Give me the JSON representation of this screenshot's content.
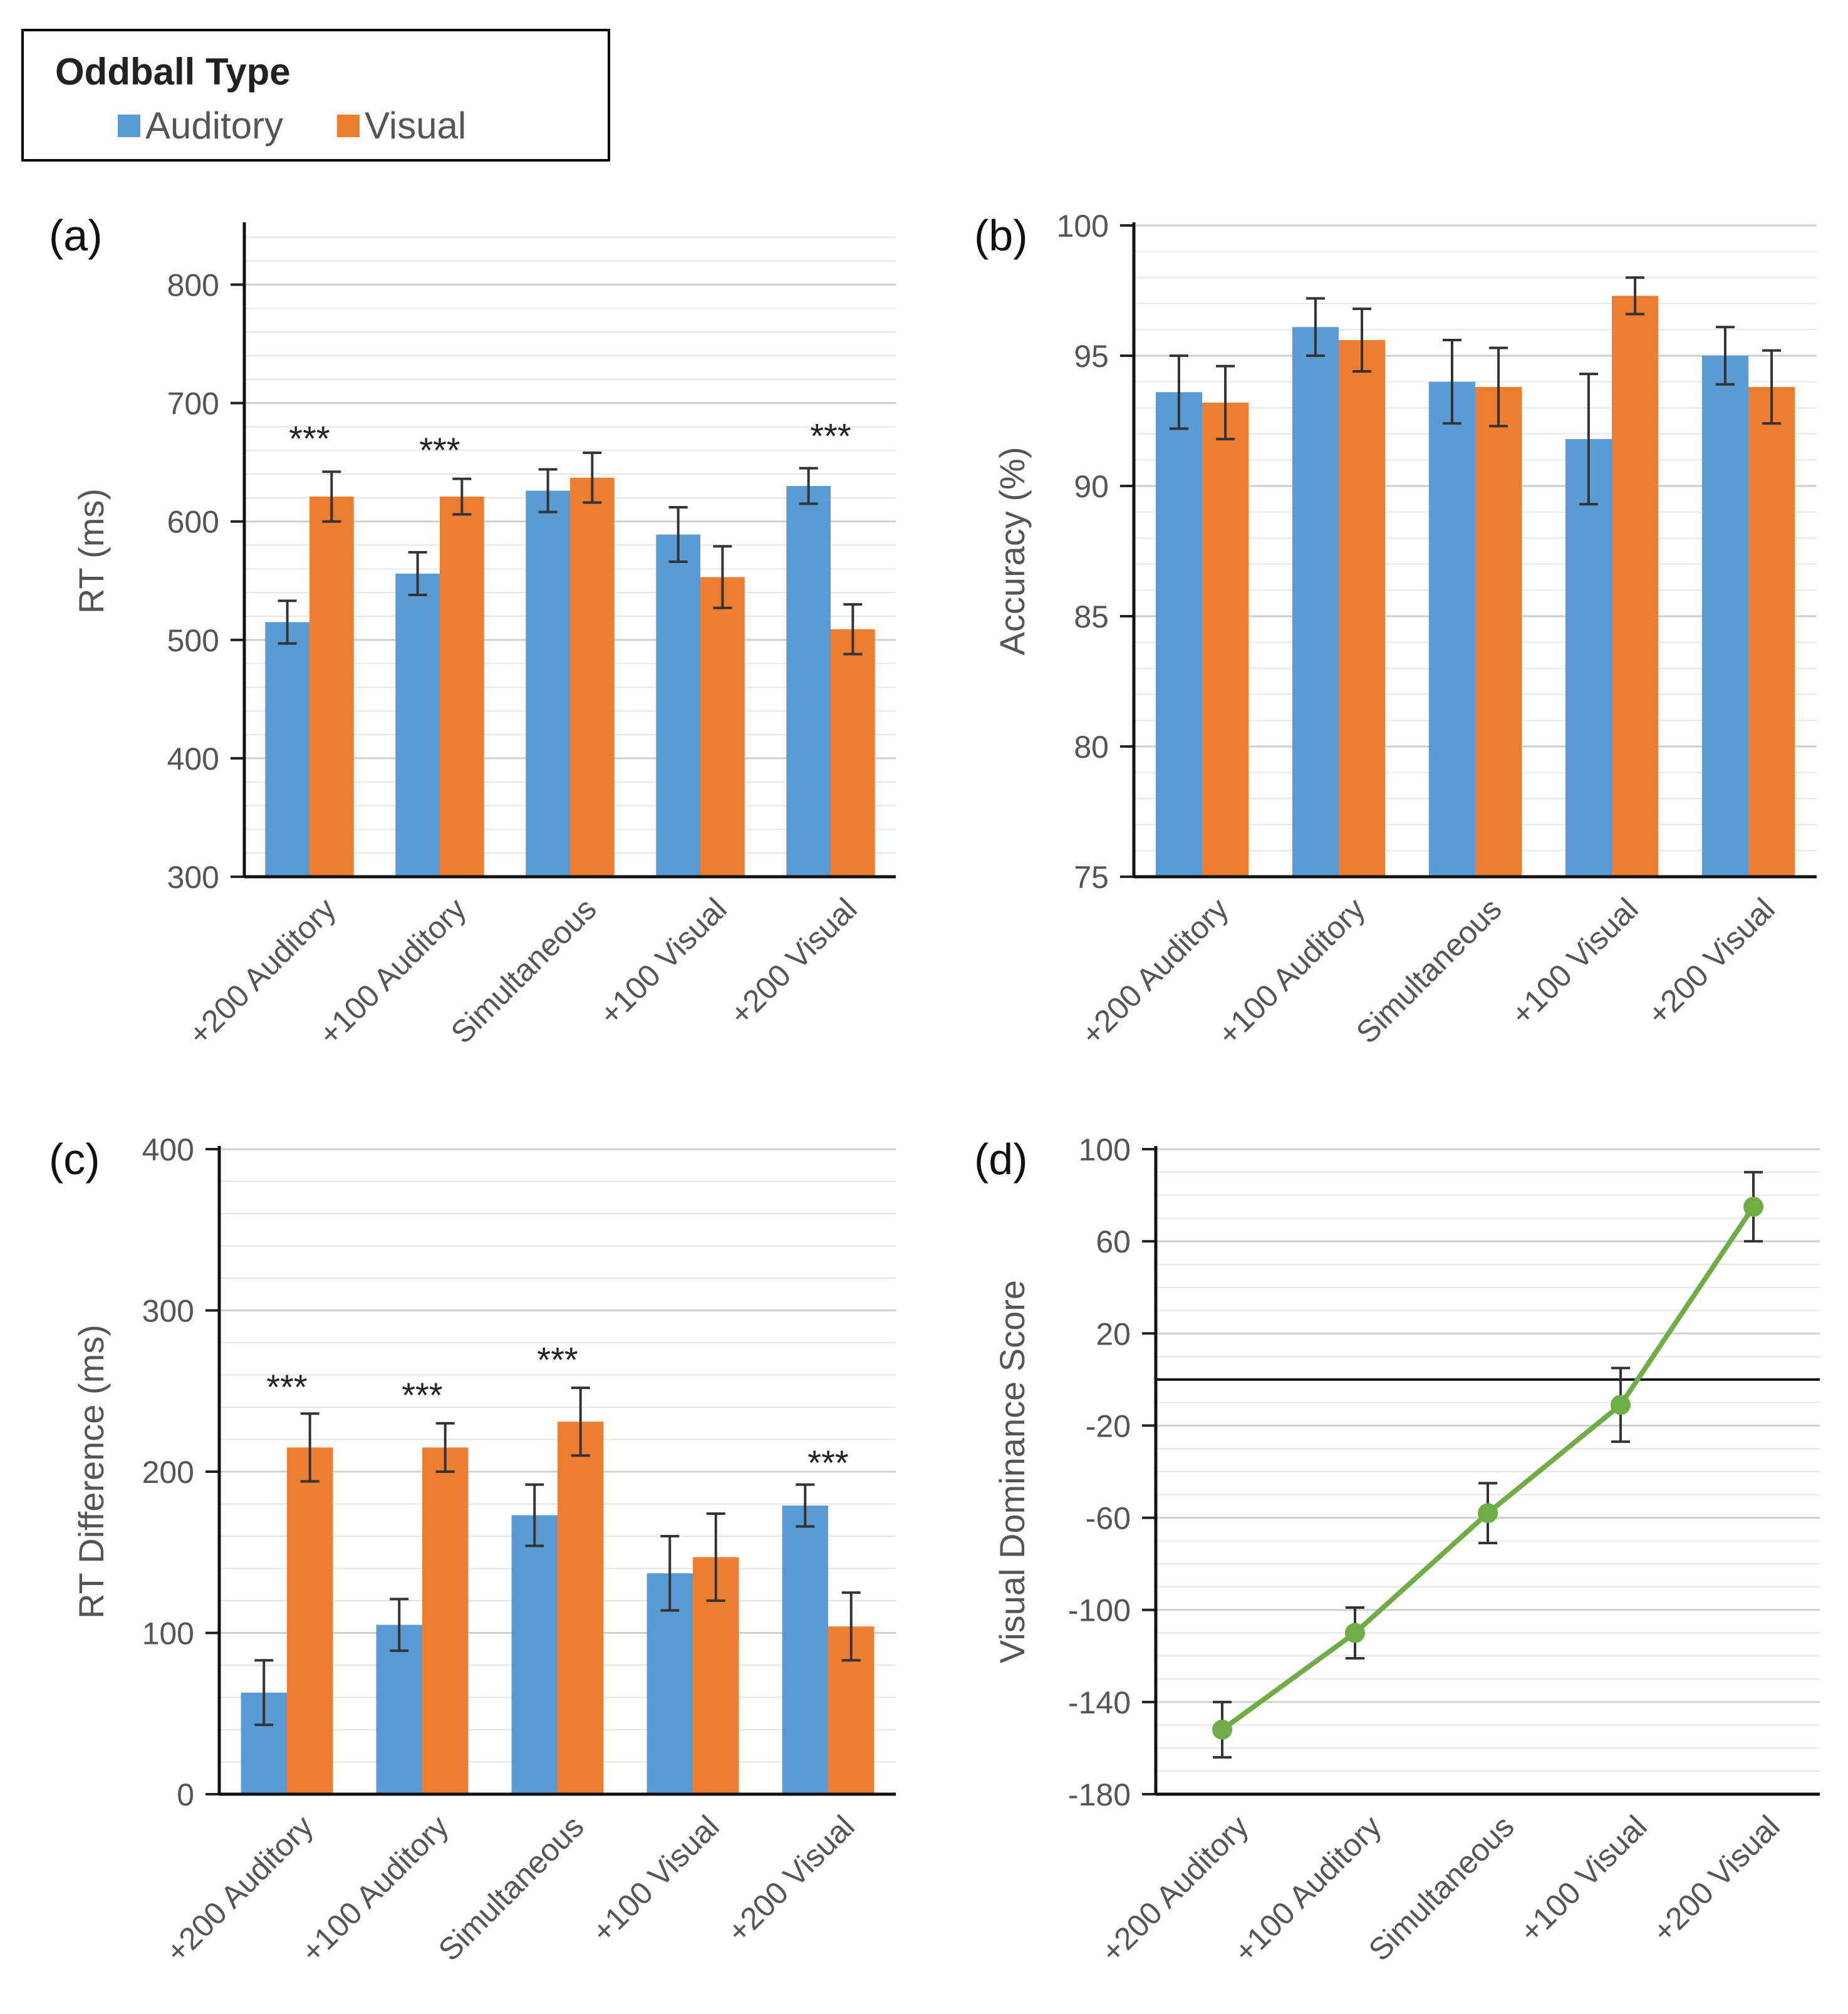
{
  "legend": {
    "title": "Oddball Type",
    "entries": [
      {
        "label": "Auditory",
        "color": "#5B9BD5"
      },
      {
        "label": "Visual",
        "color": "#ED7D31"
      }
    ]
  },
  "chart_data": [
    {
      "id": "a",
      "panel_label": "(a)",
      "type": "bar",
      "ylabel": "RT  (ms)",
      "ylim": [
        300,
        850
      ],
      "yticks": [
        300,
        400,
        500,
        600,
        700,
        800
      ],
      "categories": [
        "+200 Auditory",
        "+100 Auditory",
        "Simultaneous",
        "+100 Visual",
        "+200 Visual"
      ],
      "series": [
        {
          "name": "Auditory",
          "values": [
            515,
            556,
            626,
            589,
            630
          ],
          "errors": [
            18,
            18,
            18,
            23,
            15
          ]
        },
        {
          "name": "Visual",
          "values": [
            621,
            621,
            637,
            553,
            509
          ],
          "errors": [
            21,
            15,
            21,
            26,
            21
          ]
        }
      ],
      "annotations": [
        {
          "category": 0,
          "y": 660,
          "text": "***"
        },
        {
          "category": 1,
          "y": 650,
          "text": "***"
        },
        {
          "category": 4,
          "y": 662,
          "text": "***"
        }
      ]
    },
    {
      "id": "b",
      "panel_label": "(b)",
      "type": "bar",
      "ylabel": "Accuracy  (%)",
      "ylim": [
        75,
        100
      ],
      "yticks": [
        75,
        80,
        85,
        90,
        95,
        100
      ],
      "categories": [
        "+200 Auditory",
        "+100 Auditory",
        "Simultaneous",
        "+100 Visual",
        "+200 Visual"
      ],
      "series": [
        {
          "name": "Auditory",
          "values": [
            93.6,
            96.1,
            94.0,
            91.8,
            95.0
          ],
          "errors": [
            1.4,
            1.1,
            1.6,
            2.5,
            1.1
          ]
        },
        {
          "name": "Visual",
          "values": [
            93.2,
            95.6,
            93.8,
            97.3,
            93.8
          ],
          "errors": [
            1.4,
            1.2,
            1.5,
            0.7,
            1.4
          ]
        }
      ],
      "annotations": []
    },
    {
      "id": "c",
      "panel_label": "(c)",
      "type": "bar",
      "ylabel": "RT Difference  (ms)",
      "ylim": [
        0,
        400
      ],
      "yticks": [
        0,
        100,
        200,
        300,
        400
      ],
      "categories": [
        "+200 Auditory",
        "+100 Auditory",
        "Simultaneous",
        "+100 Visual",
        "+200 Visual"
      ],
      "series": [
        {
          "name": "Auditory",
          "values": [
            63,
            105,
            173,
            137,
            179
          ],
          "errors": [
            20,
            16,
            19,
            23,
            13
          ]
        },
        {
          "name": "Visual",
          "values": [
            215,
            215,
            231,
            147,
            104
          ],
          "errors": [
            21,
            15,
            21,
            27,
            21
          ]
        }
      ],
      "annotations": [
        {
          "category": 0,
          "y": 245,
          "text": "***"
        },
        {
          "category": 1,
          "y": 240,
          "text": "***"
        },
        {
          "category": 2,
          "y": 262,
          "text": "***"
        },
        {
          "category": 4,
          "y": 198,
          "text": "***"
        }
      ]
    },
    {
      "id": "d",
      "panel_label": "(d)",
      "type": "line",
      "ylabel": "Visual Dominance Score",
      "ylim": [
        -180,
        100
      ],
      "yticks": [
        -180,
        -140,
        -100,
        -60,
        -20,
        20,
        60,
        100
      ],
      "reference_line": 0,
      "categories": [
        "+200 Auditory",
        "+100 Auditory",
        "Simultaneous",
        "+100 Visual",
        "+200 Visual"
      ],
      "series": [
        {
          "name": "Visual Dominance Score",
          "color": "#70AD47",
          "values": [
            -152,
            -110,
            -58,
            -11,
            75
          ],
          "errors": [
            12,
            11,
            13,
            16,
            15
          ]
        }
      ],
      "annotations": []
    }
  ]
}
